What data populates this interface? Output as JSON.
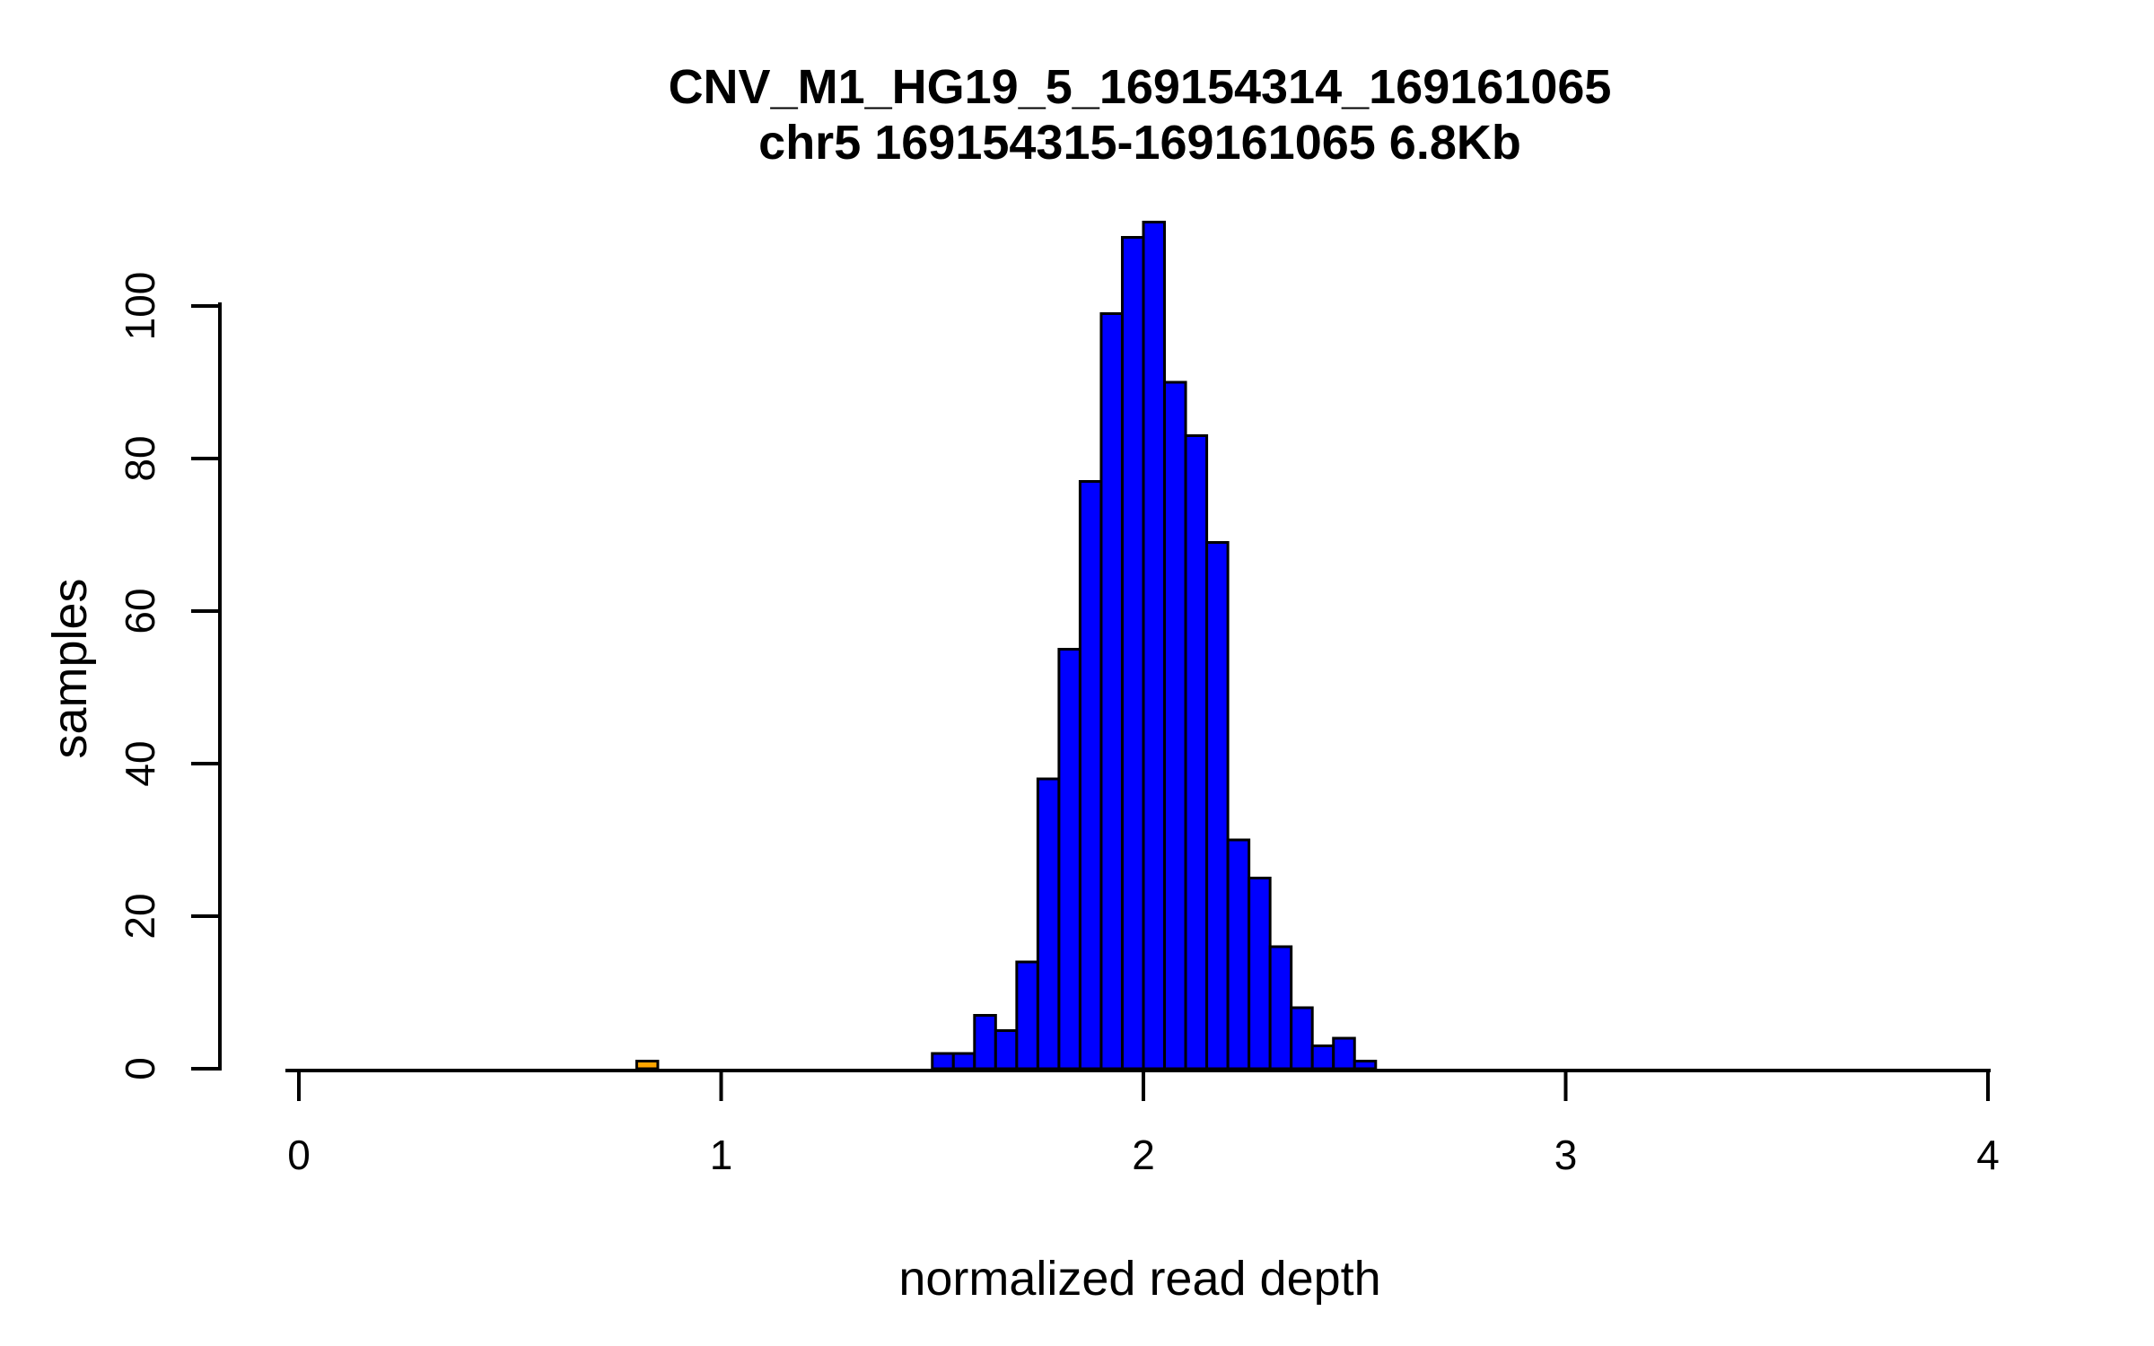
{
  "chart_data": {
    "type": "bar",
    "subtype": "histogram",
    "title": "CNV_M1_HG19_5_169154314_169161065",
    "subtitle": "chr5 169154315-169161065 6.8Kb",
    "xlabel": "normalized read depth",
    "ylabel": "samples",
    "xlim": [
      0,
      4
    ],
    "ylim": [
      0,
      111
    ],
    "grid": false,
    "legend": "none",
    "bin_width": 0.05,
    "x_ticks": [
      "0",
      "1",
      "2",
      "3",
      "4"
    ],
    "y_ticks": [
      "0",
      "20",
      "40",
      "60",
      "80",
      "100"
    ],
    "bar_fill_color": "#0000ff",
    "highlight_fill_color": "#ffa500",
    "stroke_color": "#000000",
    "background_color": "#ffffff",
    "bins": [
      {
        "start": 0.8,
        "count": 1,
        "color": "#ffa500"
      },
      {
        "start": 1.5,
        "count": 2,
        "color": "#0000ff"
      },
      {
        "start": 1.55,
        "count": 2,
        "color": "#0000ff"
      },
      {
        "start": 1.6,
        "count": 7,
        "color": "#0000ff"
      },
      {
        "start": 1.65,
        "count": 5,
        "color": "#0000ff"
      },
      {
        "start": 1.7,
        "count": 14,
        "color": "#0000ff"
      },
      {
        "start": 1.75,
        "count": 38,
        "color": "#0000ff"
      },
      {
        "start": 1.8,
        "count": 55,
        "color": "#0000ff"
      },
      {
        "start": 1.85,
        "count": 77,
        "color": "#0000ff"
      },
      {
        "start": 1.9,
        "count": 99,
        "color": "#0000ff"
      },
      {
        "start": 1.95,
        "count": 109,
        "color": "#0000ff"
      },
      {
        "start": 2.0,
        "count": 111,
        "color": "#0000ff"
      },
      {
        "start": 2.05,
        "count": 90,
        "color": "#0000ff"
      },
      {
        "start": 2.1,
        "count": 83,
        "color": "#0000ff"
      },
      {
        "start": 2.15,
        "count": 69,
        "color": "#0000ff"
      },
      {
        "start": 2.2,
        "count": 30,
        "color": "#0000ff"
      },
      {
        "start": 2.25,
        "count": 25,
        "color": "#0000ff"
      },
      {
        "start": 2.3,
        "count": 16,
        "color": "#0000ff"
      },
      {
        "start": 2.35,
        "count": 8,
        "color": "#0000ff"
      },
      {
        "start": 2.4,
        "count": 3,
        "color": "#0000ff"
      },
      {
        "start": 2.45,
        "count": 4,
        "color": "#0000ff"
      },
      {
        "start": 2.5,
        "count": 1,
        "color": "#0000ff"
      }
    ]
  }
}
